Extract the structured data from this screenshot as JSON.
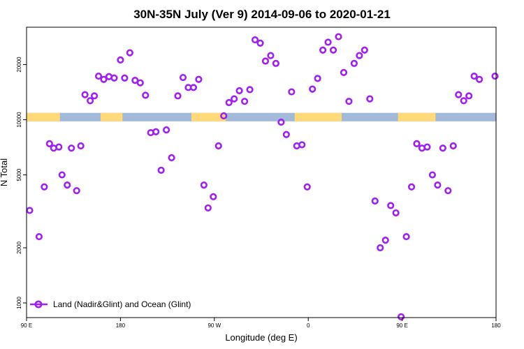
{
  "chart_data": {
    "type": "scatter",
    "title": "30N-35N July (Ver 9)   2014-09-06 to 2020-01-21",
    "xlabel": "Longitude (deg E)",
    "ylabel": "N Total",
    "xlim": [
      90,
      540
    ],
    "ylim_log10": [
      2.92,
      4.505
    ],
    "y_scale": "log",
    "x_ticks": [
      {
        "value": 90,
        "label": "90 E"
      },
      {
        "value": 180,
        "label": "180"
      },
      {
        "value": 270,
        "label": "90 W"
      },
      {
        "value": 360,
        "label": "0"
      },
      {
        "value": 450,
        "label": "90 E"
      },
      {
        "value": 540,
        "label": "180"
      }
    ],
    "y_ticks": [
      {
        "value": 1000,
        "label": "1000"
      },
      {
        "value": 2000,
        "label": "2000"
      },
      {
        "value": 5000,
        "label": "5000"
      },
      {
        "value": 10000,
        "label": "10000"
      },
      {
        "value": 20000,
        "label": "20000"
      }
    ],
    "legend": {
      "position": "bottom-left",
      "label": "Land (Nadir&Glint) and Ocean (Glint)",
      "color": "#a020f0"
    },
    "land_mask": {
      "y_range": [
        9800,
        10900
      ],
      "land_color": "#ffd97a",
      "ocean_color": "#a3b9d8",
      "land_segments": [
        [
          90,
          122
        ],
        [
          161,
          182
        ],
        [
          248,
          281
        ],
        [
          347,
          392
        ],
        [
          446,
          482
        ]
      ]
    },
    "series": [
      {
        "name": "Land (Nadir&Glint) and Ocean (Glint)",
        "color": "#a020f0",
        "points": [
          [
            93,
            3200
          ],
          [
            102,
            2300
          ],
          [
            107,
            4300
          ],
          [
            112,
            7400
          ],
          [
            116,
            7000
          ],
          [
            121,
            7100
          ],
          [
            124,
            5000
          ],
          [
            129,
            4400
          ],
          [
            133,
            7000
          ],
          [
            138,
            4100
          ],
          [
            142,
            7200
          ],
          [
            146,
            13700
          ],
          [
            151,
            12700
          ],
          [
            155,
            13500
          ],
          [
            159,
            17300
          ],
          [
            164,
            16600
          ],
          [
            169,
            17200
          ],
          [
            174,
            16900
          ],
          [
            180,
            21200
          ],
          [
            184,
            16900
          ],
          [
            189,
            23200
          ],
          [
            194,
            16400
          ],
          [
            199,
            15900
          ],
          [
            204,
            13600
          ],
          [
            209,
            8500
          ],
          [
            214,
            8600
          ],
          [
            219,
            5300
          ],
          [
            224,
            8800
          ],
          [
            229,
            6200
          ],
          [
            235,
            13500
          ],
          [
            240,
            17000
          ],
          [
            245,
            15000
          ],
          [
            250,
            15000
          ],
          [
            255,
            16600
          ],
          [
            260,
            4400
          ],
          [
            264,
            3300
          ],
          [
            269,
            3800
          ],
          [
            274,
            7200
          ],
          [
            279,
            10500
          ],
          [
            284,
            12400
          ],
          [
            289,
            13000
          ],
          [
            294,
            14400
          ],
          [
            299,
            12600
          ],
          [
            304,
            14600
          ],
          [
            309,
            27300
          ],
          [
            314,
            26200
          ],
          [
            319,
            20900
          ],
          [
            324,
            22400
          ],
          [
            329,
            20300
          ],
          [
            334,
            9700
          ],
          [
            339,
            8300
          ],
          [
            344,
            14200
          ],
          [
            349,
            7200
          ],
          [
            354,
            7300
          ],
          [
            359,
            4300
          ],
          [
            364,
            14700
          ],
          [
            369,
            16800
          ],
          [
            374,
            24000
          ],
          [
            379,
            26500
          ],
          [
            384,
            24000
          ],
          [
            389,
            28400
          ],
          [
            394,
            18100
          ],
          [
            399,
            12600
          ],
          [
            404,
            20300
          ],
          [
            409,
            22400
          ],
          [
            414,
            24000
          ],
          [
            419,
            13000
          ],
          [
            424,
            3600
          ],
          [
            429,
            2000
          ],
          [
            434,
            2200
          ],
          [
            439,
            3400
          ],
          [
            444,
            3100
          ],
          [
            449,
            840
          ],
          [
            454,
            2300
          ],
          [
            459,
            4300
          ],
          [
            464,
            7400
          ],
          [
            469,
            7000
          ],
          [
            474,
            7100
          ],
          [
            479,
            5000
          ],
          [
            484,
            4400
          ],
          [
            489,
            7000
          ],
          [
            494,
            4100
          ],
          [
            499,
            7200
          ],
          [
            504,
            13700
          ],
          [
            509,
            12700
          ],
          [
            514,
            13500
          ],
          [
            519,
            17300
          ],
          [
            524,
            16600
          ],
          [
            539,
            17300
          ]
        ]
      }
    ]
  }
}
